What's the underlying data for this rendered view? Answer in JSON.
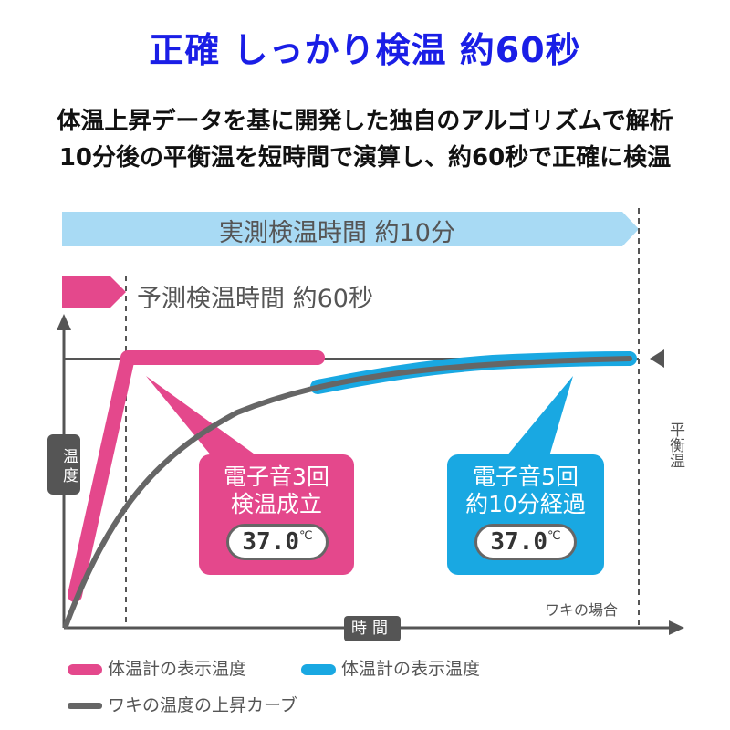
{
  "title": "正確 しっかり検温 約60秒",
  "subtitle_line1": "体温上昇データを基に開発した独自のアルゴリズムで解析",
  "subtitle_line2": "10分後の平衡温を短時間で演算し、約60秒で正確に検温",
  "bar_actual": "実測検温時間 約10分",
  "bar_predict": "予測検温時間 約60秒",
  "y_axis": "温度",
  "x_axis": "時間",
  "equilibrium": "平衡温",
  "note": "ワキの場合",
  "box_predict": {
    "line1": "電子音3回",
    "line2": "検温成立",
    "reading": "37.0",
    "unit": "℃"
  },
  "box_actual": {
    "line1": "電子音5回",
    "line2": "約10分経過",
    "reading": "37.0",
    "unit": "℃"
  },
  "legend": [
    {
      "label": "体温計の表示温度",
      "color": "#e4488c"
    },
    {
      "label": "体温計の表示温度",
      "color": "#19a8e2"
    },
    {
      "label": "ワキの温度の上昇カーブ",
      "color": "#666666"
    }
  ],
  "colors": {
    "pink": "#e4488c",
    "blue": "#19a8e2",
    "gray": "#666666",
    "lightblue": "#a8daf4"
  }
}
